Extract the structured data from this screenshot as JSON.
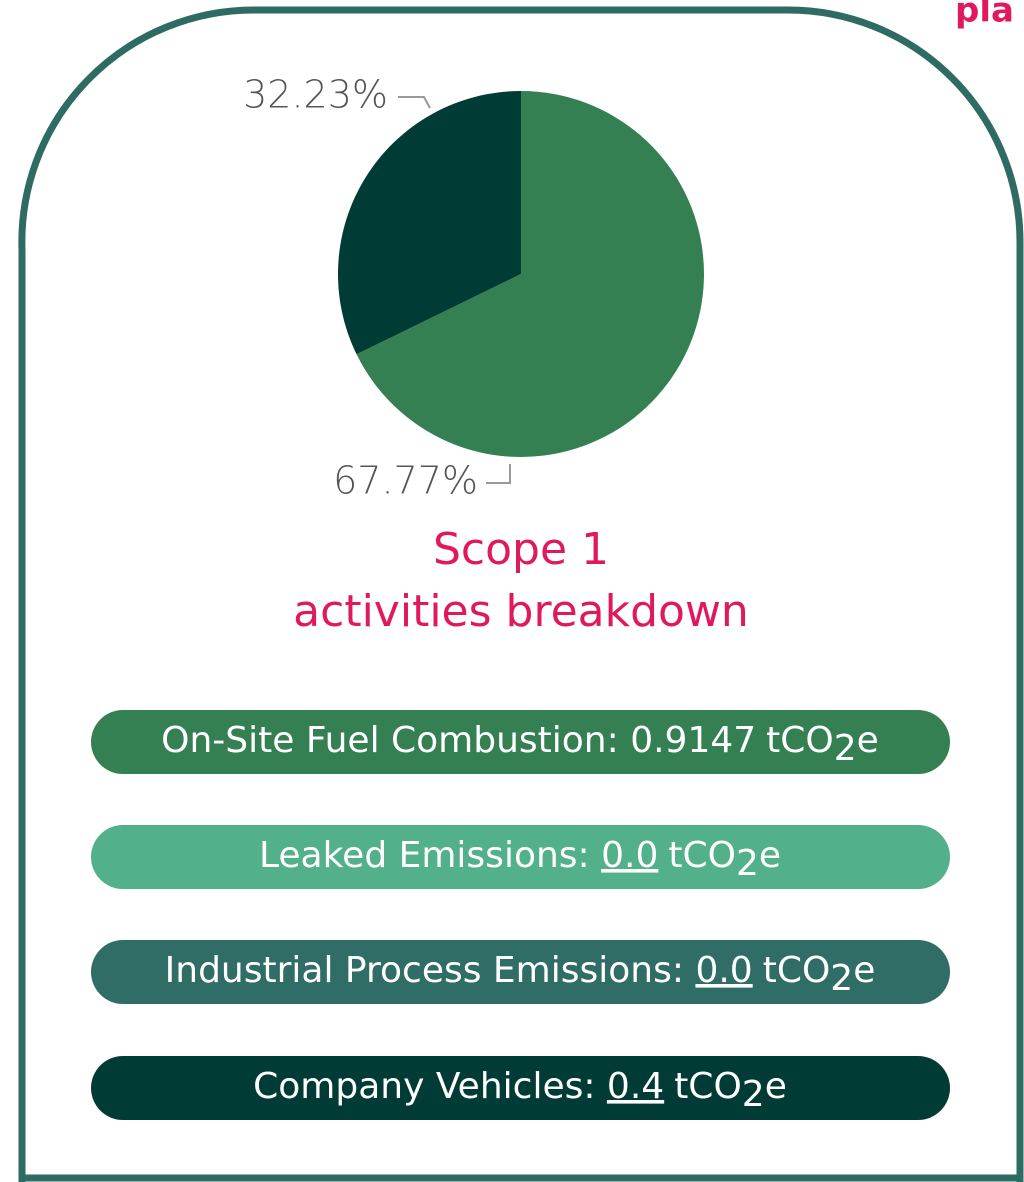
{
  "corner_text": "pla",
  "chart_data": {
    "type": "pie",
    "values": [
      67.77,
      32.23
    ],
    "value_labels": [
      "67.77%",
      "32.23%"
    ],
    "colors": [
      "#358053",
      "#003c35"
    ]
  },
  "title_line1": "Scope 1",
  "title_line2": "activities breakdown",
  "unit": {
    "main": "tCO",
    "sub": "2",
    "end": "e"
  },
  "items": [
    {
      "label": "On-Site Fuel Combustion: ",
      "value": "0.9147",
      "color": "#358053",
      "underline": false
    },
    {
      "label": "Leaked Emissions: ",
      "value": "0.0",
      "color": "#52b08a",
      "underline": true
    },
    {
      "label": "Industrial Process Emissions: ",
      "value": "0.0",
      "color": "#2f6d66",
      "underline": true
    },
    {
      "label": "Company Vehicles: ",
      "value": "0.4",
      "color": "#003c35",
      "underline": true
    }
  ]
}
